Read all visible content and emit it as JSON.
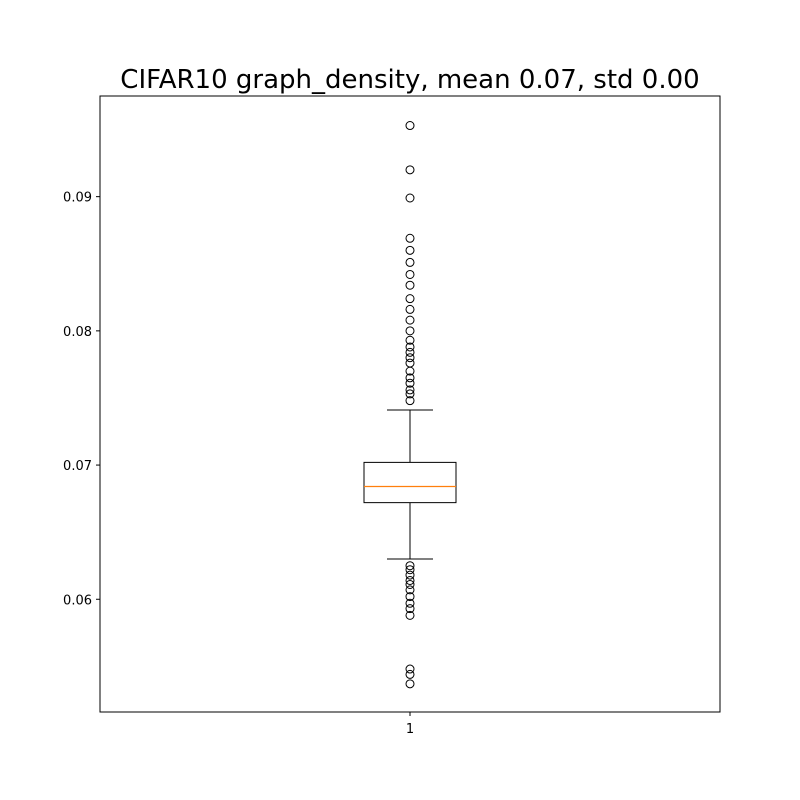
{
  "chart_data": {
    "type": "box",
    "title": "CIFAR10 graph_density, mean 0.07, std 0.00",
    "xlabel": "",
    "ylabel": "",
    "categories": [
      "1"
    ],
    "y_ticks": [
      0.06,
      0.07,
      0.08,
      0.09
    ],
    "y_tick_labels": [
      "0.06",
      "0.07",
      "0.08",
      "0.09"
    ],
    "ylim": [
      0.0516,
      0.0975
    ],
    "grid": false,
    "legend": "none",
    "box": {
      "q1": 0.0672,
      "median": 0.0684,
      "q3": 0.0702,
      "whisker_low": 0.063,
      "whisker_high": 0.0741,
      "outliers_high": [
        0.0748,
        0.0753,
        0.0756,
        0.0761,
        0.0765,
        0.077,
        0.0776,
        0.078,
        0.0784,
        0.0788,
        0.0793,
        0.08,
        0.0808,
        0.0816,
        0.0824,
        0.0834,
        0.0842,
        0.0851,
        0.086,
        0.0869,
        0.0899,
        0.092,
        0.0953
      ],
      "outliers_low": [
        0.0625,
        0.0622,
        0.0618,
        0.0614,
        0.0611,
        0.0607,
        0.0602,
        0.0597,
        0.0593,
        0.0588,
        0.0548,
        0.0544,
        0.0537
      ]
    },
    "colors": {
      "box": "#000000",
      "median": "#ff7f0e",
      "outlier_edge": "#000000"
    }
  }
}
